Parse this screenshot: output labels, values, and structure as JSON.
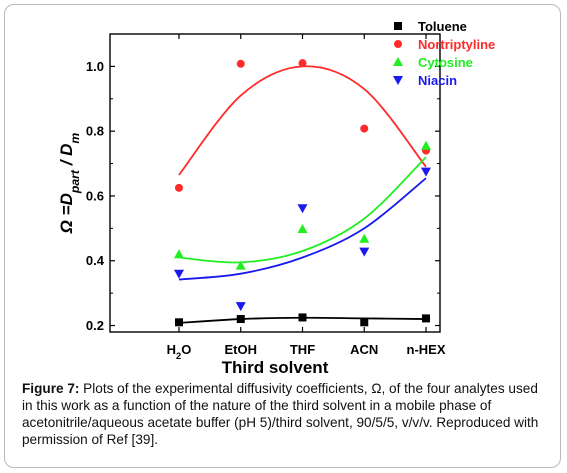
{
  "chart_data": {
    "type": "scatter",
    "xlabel": "Third solvent",
    "ylabel": "Ω =D<sub>part</sub> / D<sub>m</sub>",
    "categories": [
      "H<sub>2</sub>O",
      "EtOH",
      "THF",
      "ACN",
      "n-HEX"
    ],
    "ylim": [
      0.18,
      1.1
    ],
    "yticks": [
      "0.2",
      "0.4",
      "0.6",
      "0.8",
      "1.0"
    ],
    "legend_position": "top-right",
    "grid": false,
    "series": [
      {
        "name": "Toluene",
        "marker": "square",
        "color": "#000000",
        "values": [
          0.21,
          0.22,
          0.225,
          0.21,
          0.222
        ],
        "fit": [
          0.208,
          0.22,
          0.224,
          0.222,
          0.22
        ]
      },
      {
        "name": "Nortriptyline",
        "marker": "circle",
        "color": "#ff2a2a",
        "values": [
          0.625,
          1.008,
          1.01,
          0.808,
          0.74
        ],
        "fit": [
          0.665,
          0.91,
          1.0,
          0.93,
          0.69
        ]
      },
      {
        "name": "Cytosine",
        "marker": "triangle-up",
        "color": "#22ee22",
        "values": [
          0.42,
          0.385,
          0.498,
          0.468,
          0.755
        ],
        "fit": [
          0.41,
          0.395,
          0.43,
          0.53,
          0.72
        ]
      },
      {
        "name": "Niacin",
        "marker": "triangle-down",
        "color": "#1a1aee",
        "values": [
          0.36,
          0.26,
          0.562,
          0.428,
          0.675
        ],
        "fit": [
          0.342,
          0.36,
          0.41,
          0.5,
          0.655
        ]
      }
    ]
  },
  "caption": {
    "label": "Figure 7:",
    "text": " Plots of the experimental diffusivity coefficients, Ω, of the four analytes used in this work as a function of the nature of the third solvent in a mobile phase of acetonitrile/aqueous acetate buffer (pH 5)/third solvent, 90/5/5, v/v/v. Reproduced with permission of Ref [39]."
  }
}
